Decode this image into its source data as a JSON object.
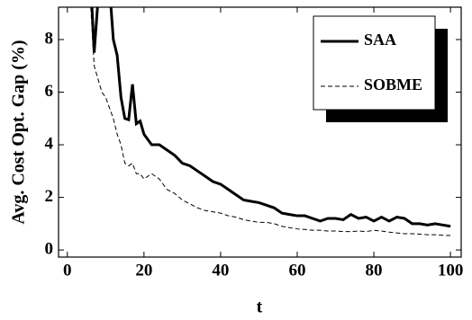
{
  "chart_data": {
    "type": "line",
    "x_label": "t",
    "y_label": "Avg. Cost Opt. Gap (%)",
    "x": [
      6,
      7,
      8,
      9,
      10,
      11,
      12,
      13,
      14,
      15,
      16,
      17,
      18,
      19,
      20,
      22,
      24,
      26,
      28,
      30,
      32,
      34,
      36,
      38,
      40,
      42,
      44,
      46,
      48,
      50,
      52,
      54,
      56,
      58,
      60,
      62,
      64,
      66,
      68,
      70,
      72,
      74,
      76,
      78,
      80,
      82,
      84,
      86,
      88,
      90,
      92,
      94,
      96,
      98,
      100
    ],
    "series": [
      {
        "name": "SAA",
        "color": "#000000",
        "dashed": false,
        "values": [
          10.5,
          7.5,
          9.5,
          11,
          11,
          10,
          8,
          7.4,
          5.8,
          5,
          4.95,
          6.3,
          4.8,
          4.9,
          4.4,
          4.0,
          4.0,
          3.8,
          3.6,
          3.3,
          3.2,
          3.0,
          2.8,
          2.6,
          2.5,
          2.3,
          2.1,
          1.9,
          1.85,
          1.8,
          1.7,
          1.6,
          1.4,
          1.35,
          1.3,
          1.3,
          1.2,
          1.1,
          1.2,
          1.2,
          1.15,
          1.35,
          1.2,
          1.25,
          1.1,
          1.25,
          1.1,
          1.25,
          1.2,
          1.0,
          1.0,
          0.95,
          1.0,
          0.95,
          0.9
        ]
      },
      {
        "name": "SOBME",
        "color": "#000000",
        "dashed": true,
        "values": [
          9.5,
          7.0,
          6.5,
          6.0,
          5.8,
          5.4,
          5.0,
          4.4,
          4.0,
          3.3,
          3.2,
          3.3,
          2.9,
          2.9,
          2.7,
          2.9,
          2.7,
          2.3,
          2.15,
          1.9,
          1.75,
          1.6,
          1.5,
          1.45,
          1.4,
          1.3,
          1.25,
          1.15,
          1.1,
          1.05,
          1.05,
          1.0,
          0.9,
          0.85,
          0.8,
          0.78,
          0.75,
          0.75,
          0.72,
          0.72,
          0.7,
          0.7,
          0.72,
          0.7,
          0.75,
          0.72,
          0.68,
          0.65,
          0.62,
          0.62,
          0.6,
          0.58,
          0.58,
          0.56,
          0.55
        ]
      }
    ],
    "xlim": [
      -2.3,
      102.8
    ],
    "ylim": [
      -0.27,
      9.23
    ],
    "xticks": [
      0,
      20,
      40,
      60,
      80,
      100
    ],
    "yticks": [
      0,
      2,
      4,
      6,
      8
    ],
    "legend": "upper right"
  }
}
